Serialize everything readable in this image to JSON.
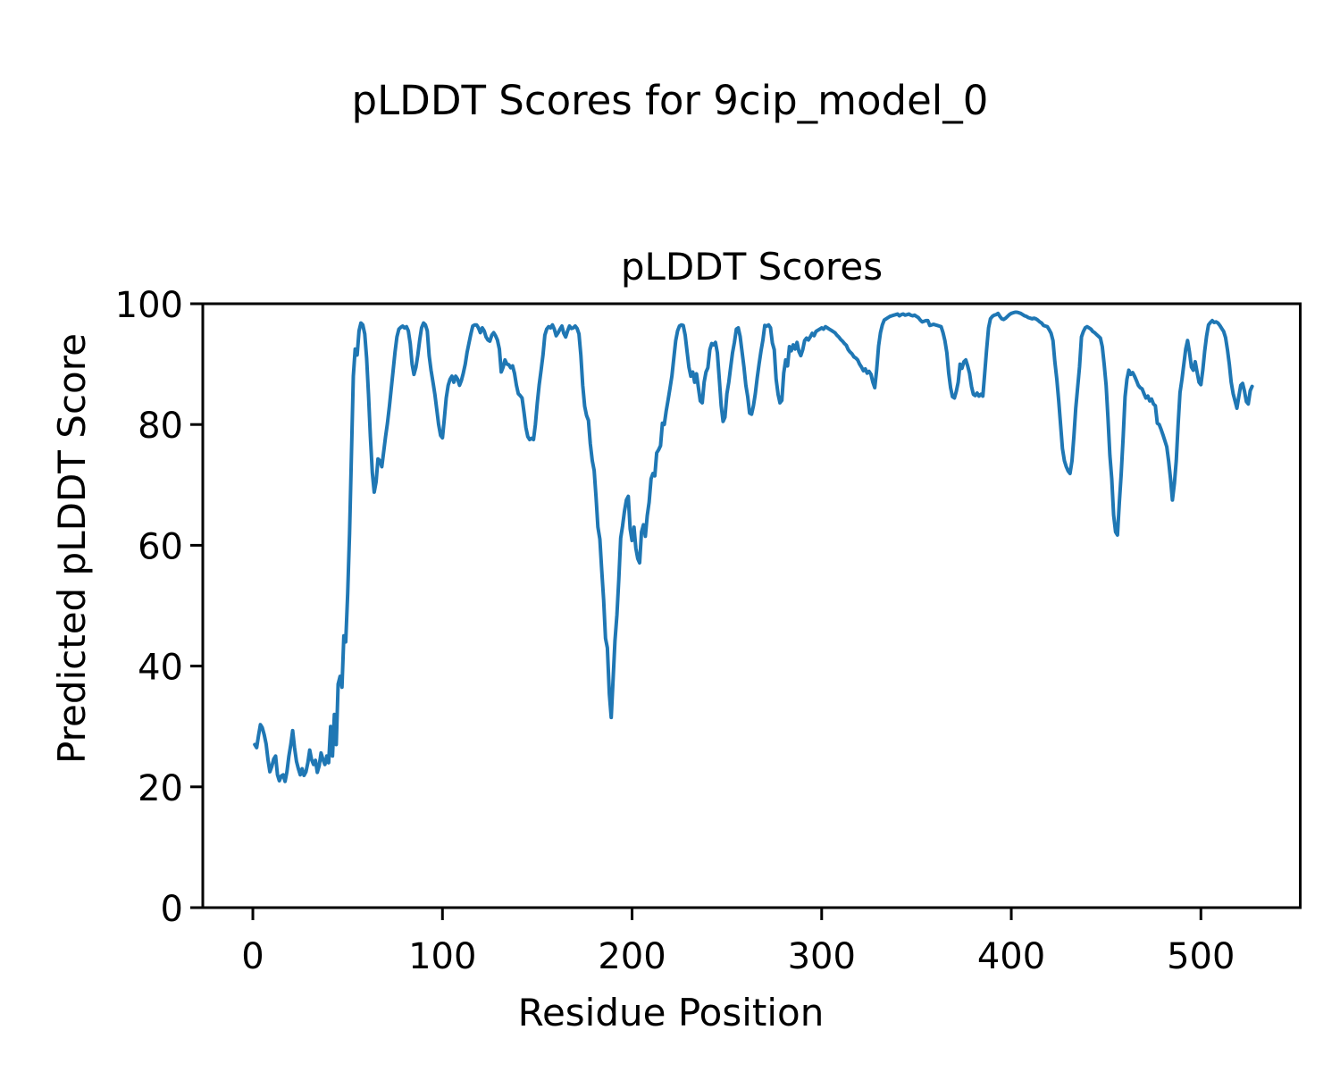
{
  "figure": {
    "suptitle": "pLDDT Scores for 9cip_model_0"
  },
  "chart_data": {
    "type": "line",
    "title": "pLDDT Scores",
    "xlabel": "Residue Position",
    "ylabel": "Predicted pLDDT Score",
    "x_ticks": [
      0,
      100,
      200,
      300,
      400,
      500
    ],
    "y_ticks": [
      0,
      20,
      40,
      60,
      80,
      100
    ],
    "xlim": [
      -26.4,
      552.4
    ],
    "ylim": [
      0,
      100
    ],
    "grid": false,
    "legend_position": "none",
    "line_color": "#1f77b4",
    "axis_color": "#000000",
    "background_color": "#ffffff",
    "series": [
      {
        "name": "pLDDT",
        "x_start": 1,
        "x_step": 1,
        "y": [
          27.0,
          26.5,
          28.5,
          30.3,
          29.8,
          28.6,
          27.1,
          24.5,
          22.5,
          23.4,
          24.6,
          25.1,
          22.0,
          21.0,
          21.8,
          22.0,
          20.9,
          22.5,
          25.1,
          27.0,
          29.3,
          26.5,
          24.2,
          23.0,
          22.0,
          23.0,
          21.9,
          22.5,
          24.0,
          26.1,
          24.5,
          23.7,
          24.4,
          22.4,
          23.5,
          25.6,
          24.5,
          23.7,
          25.1,
          24.0,
          30.0,
          25.1,
          32.0,
          27.0,
          37.0,
          38.3,
          36.5,
          45.0,
          44.0,
          52.0,
          62.0,
          75.0,
          88.0,
          92.5,
          91.5,
          95.5,
          96.8,
          96.5,
          95.0,
          91.0,
          85.0,
          78.0,
          72.0,
          68.8,
          70.5,
          74.3,
          74.0,
          73.0,
          75.5,
          78.0,
          80.2,
          83.0,
          86.0,
          89.0,
          92.0,
          94.5,
          95.8,
          96.1,
          96.3,
          96.0,
          96.2,
          95.5,
          93.4,
          90.0,
          88.3,
          89.5,
          91.5,
          94.0,
          96.0,
          96.8,
          96.5,
          95.5,
          91.4,
          89.0,
          87.0,
          85.0,
          82.5,
          80.0,
          78.2,
          77.8,
          81.0,
          84.4,
          86.5,
          87.5,
          88.0,
          87.0,
          88.0,
          87.5,
          86.5,
          87.3,
          88.5,
          90.0,
          92.0,
          93.5,
          95.0,
          96.3,
          96.5,
          96.5,
          96.0,
          95.2,
          96.0,
          95.5,
          94.5,
          94.0,
          93.8,
          94.8,
          95.2,
          94.7,
          94.0,
          92.5,
          88.7,
          89.5,
          90.7,
          90.0,
          89.9,
          89.4,
          89.7,
          88.5,
          86.5,
          85.1,
          84.8,
          84.4,
          82.0,
          79.5,
          78.0,
          77.5,
          77.7,
          77.5,
          80.0,
          83.5,
          86.5,
          89.0,
          91.5,
          94.8,
          95.8,
          96.2,
          96.0,
          96.5,
          95.8,
          94.7,
          95.2,
          95.8,
          96.3,
          95.1,
          94.5,
          95.5,
          96.3,
          95.9,
          96.0,
          96.3,
          95.9,
          95.0,
          91.5,
          86.5,
          83.0,
          81.5,
          80.7,
          76.8,
          74.0,
          72.4,
          68.0,
          63.0,
          61.0,
          55.8,
          51.0,
          44.6,
          43.0,
          35.4,
          31.5,
          37.8,
          44.2,
          48.5,
          54.4,
          61.2,
          63.2,
          65.6,
          67.5,
          68.1,
          62.7,
          60.8,
          63.0,
          59.5,
          57.8,
          57.1,
          62.2,
          63.4,
          61.5,
          64.9,
          67.1,
          71.0,
          71.9,
          71.5,
          75.3,
          75.8,
          76.5,
          80.2,
          80.0,
          82.2,
          84.1,
          86.0,
          88.0,
          90.9,
          93.9,
          95.5,
          96.3,
          96.5,
          96.4,
          94.8,
          92.1,
          89.5,
          88.0,
          88.7,
          87.0,
          88.4,
          86.1,
          83.9,
          83.6,
          87.0,
          88.7,
          89.4,
          92.4,
          93.4,
          93.2,
          93.6,
          91.9,
          87.5,
          83.1,
          80.5,
          81.2,
          85.1,
          87.0,
          89.5,
          91.9,
          93.6,
          95.8,
          96.0,
          94.6,
          92.1,
          89.5,
          86.5,
          84.6,
          81.9,
          81.7,
          83.1,
          85.1,
          87.7,
          90.0,
          92.2,
          94.0,
          96.4,
          96.3,
          96.5,
          96.0,
          93.5,
          92.4,
          87.5,
          85.0,
          83.6,
          84.0,
          88.5,
          90.7,
          89.7,
          92.9,
          92.2,
          93.2,
          92.5,
          93.6,
          92.1,
          91.4,
          92.4,
          93.9,
          94.3,
          94.0,
          94.5,
          95.1,
          94.7,
          95.4,
          95.6,
          95.8,
          96.0,
          95.8,
          96.2,
          96.0,
          95.8,
          95.6,
          95.4,
          95.2,
          94.8,
          94.5,
          94.1,
          93.8,
          93.4,
          93.1,
          92.4,
          92.0,
          91.7,
          91.2,
          91.0,
          90.7,
          90.0,
          89.5,
          88.9,
          89.2,
          88.5,
          88.8,
          88.3,
          87.0,
          86.1,
          89.0,
          93.0,
          95.2,
          96.5,
          97.3,
          97.5,
          97.7,
          97.9,
          98.0,
          98.1,
          98.2,
          98.3,
          98.0,
          98.2,
          98.3,
          98.1,
          98.2,
          98.3,
          98.1,
          98.0,
          98.1,
          97.9,
          97.7,
          97.3,
          97.0,
          97.1,
          97.2,
          97.2,
          96.4,
          96.5,
          96.6,
          96.5,
          96.4,
          96.3,
          96.2,
          95.2,
          93.9,
          91.9,
          88.5,
          86.1,
          84.6,
          84.4,
          85.5,
          87.0,
          90.0,
          89.3,
          90.4,
          90.7,
          89.7,
          88.5,
          86.3,
          85.0,
          84.8,
          85.2,
          84.7,
          85.0,
          84.7,
          88.5,
          92.4,
          96.0,
          97.5,
          97.9,
          98.1,
          98.2,
          98.4,
          97.9,
          97.5,
          97.4,
          97.6,
          97.9,
          98.2,
          98.4,
          98.5,
          98.6,
          98.6,
          98.5,
          98.4,
          98.2,
          98.0,
          97.9,
          97.7,
          97.6,
          97.5,
          97.6,
          97.5,
          97.3,
          97.0,
          96.8,
          96.4,
          96.3,
          96.2,
          95.7,
          95.1,
          93.9,
          90.4,
          87.5,
          84.0,
          80.0,
          76.0,
          74.0,
          73.0,
          72.3,
          71.9,
          74.0,
          78.0,
          82.7,
          86.1,
          89.5,
          94.5,
          95.4,
          96.0,
          96.2,
          96.0,
          95.8,
          95.4,
          95.2,
          94.9,
          94.6,
          94.3,
          92.9,
          90.0,
          86.5,
          81.0,
          74.9,
          71.0,
          65.0,
          62.2,
          61.7,
          67.1,
          71.9,
          78.0,
          84.6,
          87.5,
          89.0,
          88.3,
          88.6,
          88.0,
          87.3,
          86.5,
          86.1,
          85.9,
          85.1,
          84.4,
          84.7,
          83.9,
          84.2,
          83.4,
          83.1,
          80.2,
          80.0,
          79.2,
          78.3,
          77.3,
          76.3,
          73.9,
          71.0,
          67.5,
          70.2,
          74.0,
          80.0,
          85.3,
          87.5,
          90.0,
          92.5,
          93.9,
          92.0,
          89.5,
          89.0,
          90.4,
          88.7,
          87.0,
          86.6,
          89.0,
          92.1,
          94.6,
          96.5,
          96.9,
          97.2,
          96.9,
          97.0,
          96.8,
          96.4,
          95.9,
          95.4,
          94.4,
          92.4,
          90.0,
          87.0,
          85.1,
          83.9,
          82.7,
          84.6,
          86.5,
          86.8,
          85.5,
          83.8,
          83.4,
          85.6,
          86.3
        ]
      }
    ]
  }
}
